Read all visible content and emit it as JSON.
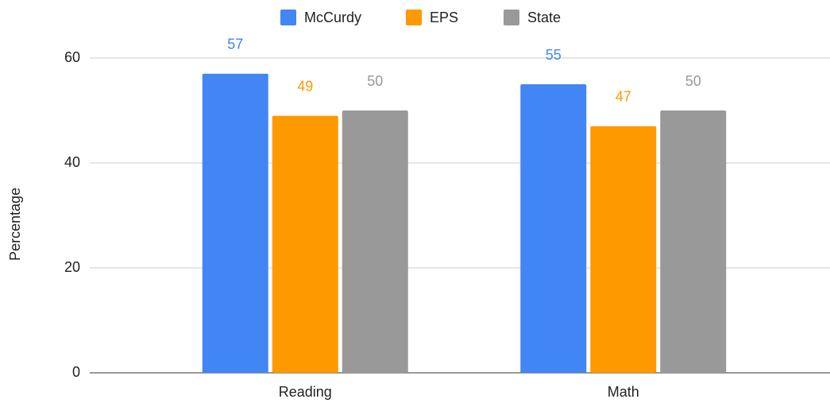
{
  "chart_data": {
    "type": "bar",
    "categories": [
      "Reading",
      "Math"
    ],
    "series": [
      {
        "name": "McCurdy",
        "color": "#4285f4",
        "values": [
          57,
          55
        ]
      },
      {
        "name": "EPS",
        "color": "#ff9900",
        "values": [
          49,
          47
        ]
      },
      {
        "name": "State",
        "color": "#999999",
        "values": [
          50,
          50
        ]
      }
    ],
    "y_label": "Percentage",
    "ylim": [
      0,
      60
    ],
    "yticks": [
      0,
      20,
      40,
      60
    ],
    "grid": true,
    "legend": "top"
  }
}
